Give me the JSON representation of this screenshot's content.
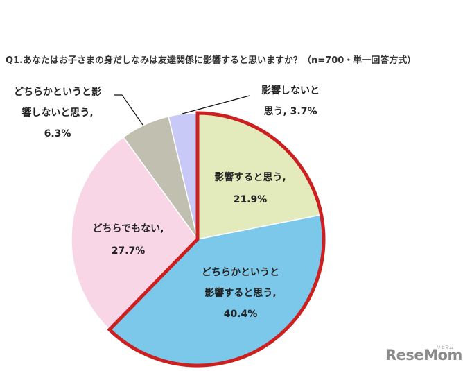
{
  "title": "Q1.あなたはお子さまの身だしなみは友達関係に影響すると思いますか？（n=700・単一回答方式）",
  "labels": {
    "influence": {
      "line1": "影響すると思う,",
      "line2": "21.9%"
    },
    "somewhat_influence": {
      "line1": "どちらかというと",
      "line2": "影響すると思う,",
      "line3": "40.4%"
    },
    "neither": {
      "line1": "どちらでもない,",
      "line2": "27.7%"
    },
    "somewhat_no_influence": {
      "line1": "どちらかというと影",
      "line2": "響しないと思う,",
      "line3": "6.3%"
    },
    "no_influence": {
      "line1": "影響しないと",
      "line2": "思う, 3.7%"
    }
  },
  "logo": {
    "text": "ReseMom",
    "kana": "リセマム"
  },
  "colors": {
    "influence": "#e3ebbd",
    "somewhat_influence": "#7cc8ea",
    "neither": "#f8d6e6",
    "somewhat_no_influence": "#c1c0b0",
    "no_influence": "#c9c9f8",
    "highlight_outline": "#cc1f1f"
  },
  "chart_data": {
    "type": "pie",
    "title": "Q1.あなたはお子さまの身だしなみは友達関係に影響すると思いますか？（n=700・単一回答方式）",
    "categories": [
      "影響すると思う",
      "どちらかというと影響すると思う",
      "どちらでもない",
      "どちらかというと影響しないと思う",
      "影響しないと思う"
    ],
    "values": [
      21.9,
      40.4,
      27.7,
      6.3,
      3.7
    ],
    "unit": "%",
    "n": 700,
    "start_angle": "12 o'clock",
    "direction": "clockwise",
    "highlight": [
      "影響すると思う",
      "どちらかというと影響すると思う"
    ],
    "legend": "none (data labels)"
  }
}
